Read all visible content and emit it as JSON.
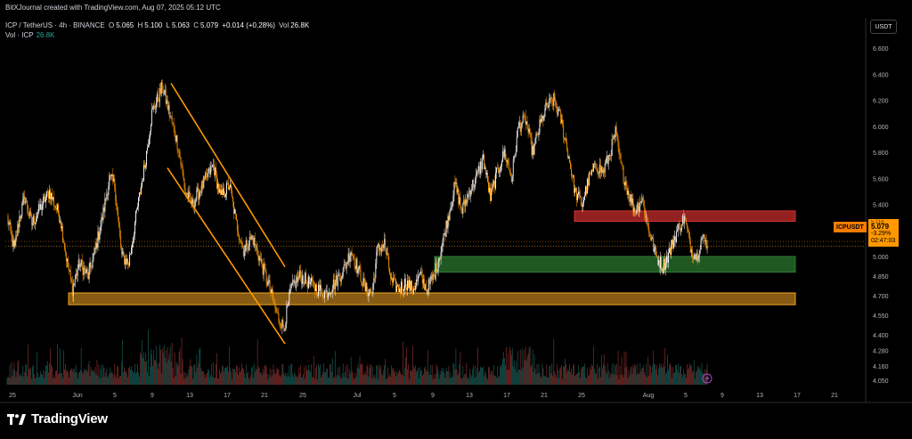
{
  "header": {
    "attribution": "BitXJournal created with TradingView.com, Aug 07, 2025 05:12 UTC",
    "symbol": "ICP / TetherUS · 4h · BINANCE",
    "o_label": "O",
    "o_value": "5.065",
    "h_label": "H",
    "h_value": "5.100",
    "l_label": "L",
    "l_value": "5.063",
    "c_label": "C",
    "c_value": "5.079",
    "change": "+0.014 (+0.28%)",
    "vol_label": "Vol",
    "vol_value": "26.8K",
    "vol_series_label": "Vol · ICP",
    "vol_series_value": "26.8K"
  },
  "price_scale": {
    "currency": "USDT",
    "symbol_tag": "ICPUSDT",
    "tag_top": "5.116",
    "tag_price": "5.079",
    "tag_change": "-3.29%",
    "tag_countdown": "02:47:03"
  },
  "branding": {
    "logo_text": "TradingView"
  },
  "colors": {
    "background": "#000000",
    "candle_up": "#ffffff",
    "candle_down": "#ff9800",
    "volume_up": "#26a69a",
    "volume_down": "#ef5350",
    "trendline": "#ff9800",
    "support_zone": "#f5a623",
    "resistance_zone": "#d32f2f",
    "demand_zone": "#2e7d32"
  },
  "chart_data": {
    "type": "candlestick",
    "timeframe": "4h",
    "ylim": [
      3.98,
      6.75
    ],
    "y_ticks": [
      "6.600",
      "6.400",
      "6.200",
      "6.000",
      "5.800",
      "5.600",
      "5.400",
      "5.200",
      "5.000",
      "4.850",
      "4.700",
      "4.550",
      "4.400",
      "4.280",
      "4.160",
      "4.050"
    ],
    "x_tick_labels": [
      "25",
      "Jun",
      "5",
      "9",
      "13",
      "17",
      "21",
      "25",
      "Jul",
      "5",
      "9",
      "13",
      "17",
      "21",
      "25",
      "Aug",
      "5",
      "9",
      "13",
      "17",
      "21"
    ],
    "current_price": 5.079,
    "previous_close": 5.116,
    "anchors": [
      {
        "t": 0,
        "p": 5.3
      },
      {
        "t": 8,
        "p": 5.05
      },
      {
        "t": 14,
        "p": 5.3
      },
      {
        "t": 20,
        "p": 5.45
      },
      {
        "t": 28,
        "p": 5.25
      },
      {
        "t": 36,
        "p": 5.35
      },
      {
        "t": 48,
        "p": 5.5
      },
      {
        "t": 60,
        "p": 5.3
      },
      {
        "t": 68,
        "p": 4.95
      },
      {
        "t": 74,
        "p": 4.75
      },
      {
        "t": 82,
        "p": 4.95
      },
      {
        "t": 92,
        "p": 4.85
      },
      {
        "t": 100,
        "p": 5.05
      },
      {
        "t": 108,
        "p": 5.3
      },
      {
        "t": 116,
        "p": 5.6
      },
      {
        "t": 122,
        "p": 5.55
      },
      {
        "t": 130,
        "p": 5.0
      },
      {
        "t": 138,
        "p": 4.95
      },
      {
        "t": 146,
        "p": 5.3
      },
      {
        "t": 156,
        "p": 5.7
      },
      {
        "t": 164,
        "p": 6.1
      },
      {
        "t": 176,
        "p": 6.3
      },
      {
        "t": 186,
        "p": 6.05
      },
      {
        "t": 194,
        "p": 5.85
      },
      {
        "t": 202,
        "p": 5.5
      },
      {
        "t": 210,
        "p": 5.4
      },
      {
        "t": 218,
        "p": 5.5
      },
      {
        "t": 226,
        "p": 5.6
      },
      {
        "t": 234,
        "p": 5.7
      },
      {
        "t": 242,
        "p": 5.45
      },
      {
        "t": 252,
        "p": 5.55
      },
      {
        "t": 260,
        "p": 5.25
      },
      {
        "t": 268,
        "p": 5.05
      },
      {
        "t": 278,
        "p": 5.15
      },
      {
        "t": 288,
        "p": 4.95
      },
      {
        "t": 298,
        "p": 4.75
      },
      {
        "t": 306,
        "p": 4.55
      },
      {
        "t": 314,
        "p": 4.45
      },
      {
        "t": 322,
        "p": 4.75
      },
      {
        "t": 332,
        "p": 4.85
      },
      {
        "t": 342,
        "p": 4.8
      },
      {
        "t": 352,
        "p": 4.75
      },
      {
        "t": 362,
        "p": 4.72
      },
      {
        "t": 372,
        "p": 4.8
      },
      {
        "t": 382,
        "p": 4.9
      },
      {
        "t": 390,
        "p": 5.05
      },
      {
        "t": 398,
        "p": 4.9
      },
      {
        "t": 406,
        "p": 4.75
      },
      {
        "t": 414,
        "p": 4.72
      },
      {
        "t": 420,
        "p": 5.05
      },
      {
        "t": 428,
        "p": 5.1
      },
      {
        "t": 436,
        "p": 4.8
      },
      {
        "t": 444,
        "p": 4.75
      },
      {
        "t": 452,
        "p": 4.8
      },
      {
        "t": 460,
        "p": 4.75
      },
      {
        "t": 468,
        "p": 4.85
      },
      {
        "t": 476,
        "p": 4.75
      },
      {
        "t": 484,
        "p": 4.85
      },
      {
        "t": 492,
        "p": 5.05
      },
      {
        "t": 500,
        "p": 5.3
      },
      {
        "t": 508,
        "p": 5.55
      },
      {
        "t": 516,
        "p": 5.35
      },
      {
        "t": 524,
        "p": 5.5
      },
      {
        "t": 532,
        "p": 5.6
      },
      {
        "t": 540,
        "p": 5.75
      },
      {
        "t": 548,
        "p": 5.45
      },
      {
        "t": 556,
        "p": 5.65
      },
      {
        "t": 564,
        "p": 5.8
      },
      {
        "t": 572,
        "p": 5.6
      },
      {
        "t": 580,
        "p": 6.0
      },
      {
        "t": 588,
        "p": 6.05
      },
      {
        "t": 596,
        "p": 5.8
      },
      {
        "t": 604,
        "p": 6.0
      },
      {
        "t": 612,
        "p": 6.15
      },
      {
        "t": 620,
        "p": 6.2
      },
      {
        "t": 628,
        "p": 6.05
      },
      {
        "t": 636,
        "p": 5.8
      },
      {
        "t": 644,
        "p": 5.5
      },
      {
        "t": 652,
        "p": 5.4
      },
      {
        "t": 660,
        "p": 5.6
      },
      {
        "t": 668,
        "p": 5.7
      },
      {
        "t": 676,
        "p": 5.65
      },
      {
        "t": 684,
        "p": 5.8
      },
      {
        "t": 690,
        "p": 5.95
      },
      {
        "t": 696,
        "p": 5.7
      },
      {
        "t": 704,
        "p": 5.5
      },
      {
        "t": 712,
        "p": 5.35
      },
      {
        "t": 720,
        "p": 5.45
      },
      {
        "t": 728,
        "p": 5.2
      },
      {
        "t": 736,
        "p": 5.0
      },
      {
        "t": 744,
        "p": 4.92
      },
      {
        "t": 752,
        "p": 5.05
      },
      {
        "t": 760,
        "p": 5.2
      },
      {
        "t": 768,
        "p": 5.3
      },
      {
        "t": 776,
        "p": 5.05
      },
      {
        "t": 782,
        "p": 5.0
      },
      {
        "t": 788,
        "p": 5.15
      },
      {
        "t": 794,
        "p": 5.08
      }
    ],
    "zones": [
      {
        "kind": "support",
        "top": 4.72,
        "bottom": 4.63,
        "start_date": "May 31",
        "end_date": "Aug 21"
      },
      {
        "kind": "demand",
        "top": 5.0,
        "bottom": 4.88,
        "start_date": "Jul 9",
        "end_date": "Aug 21"
      },
      {
        "kind": "resistance",
        "top": 5.35,
        "bottom": 5.27,
        "start_date": "Jul 24",
        "end_date": "Aug 21"
      }
    ],
    "trendlines": [
      {
        "from": {
          "date": "Jun 10",
          "price": 6.33
        },
        "to": {
          "date": "Jun 23",
          "price": 4.92
        }
      },
      {
        "from": {
          "date": "Jun 8",
          "price": 5.68
        },
        "to": {
          "date": "Jun 23",
          "price": 4.33
        }
      }
    ]
  }
}
